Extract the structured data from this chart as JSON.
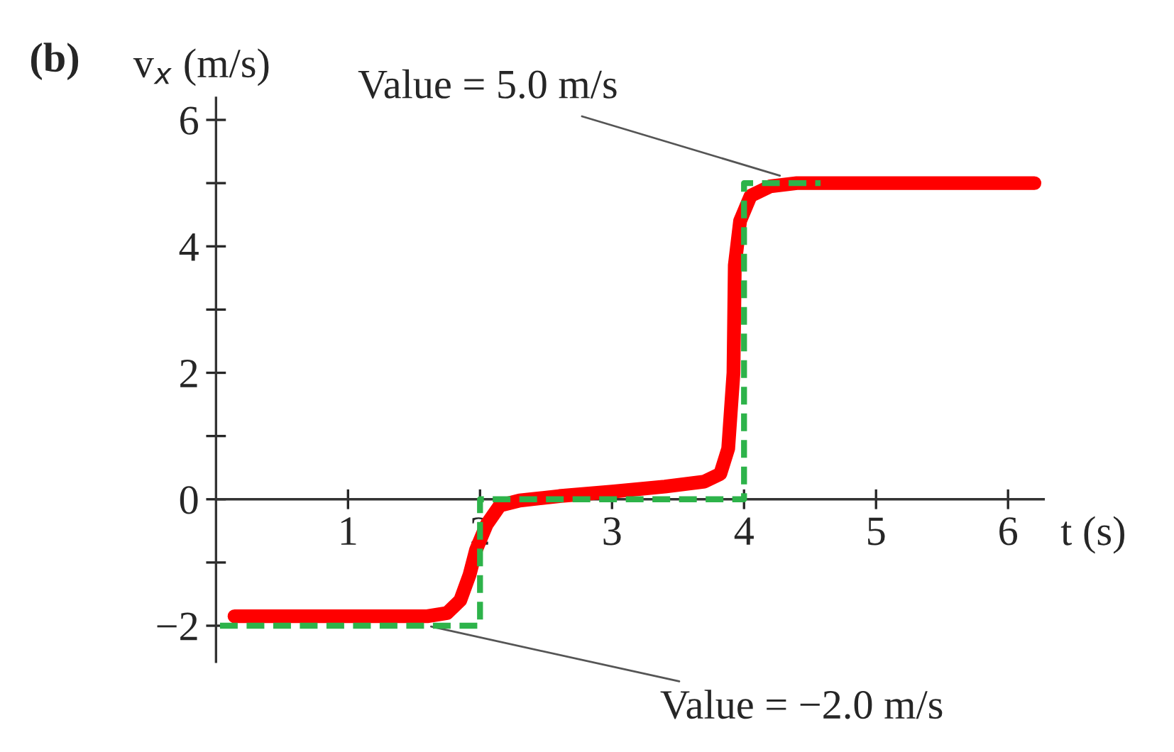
{
  "chart_data": {
    "type": "line",
    "title": "(b)",
    "ylabel": "v$_{x}$ (m/s)",
    "xlabel": "t (s)",
    "xlim": [
      0,
      6.27
    ],
    "ylim": [
      -2.57,
      6.35
    ],
    "xticks": [
      1,
      2,
      3,
      4,
      5,
      6
    ],
    "yticks": [
      -2,
      {
        "value": -1,
        "label": null
      },
      0,
      {
        "value": 1,
        "label": null
      },
      2,
      {
        "value": 3,
        "label": null
      },
      4,
      {
        "value": 5,
        "label": null
      },
      6
    ],
    "grid": false,
    "legend": false,
    "marker": "none",
    "series": [
      {
        "color": "#2db34a",
        "line_style": "dashed",
        "x": [
          0.03,
          2,
          2,
          4,
          4,
          4.58
        ],
        "values": [
          -2,
          -2,
          0,
          0,
          5,
          5
        ]
      },
      {
        "color": "#ff0000",
        "line_style": "solid",
        "x": [
          0.14,
          1.6,
          1.75,
          1.85,
          1.92,
          1.97,
          2.05,
          2.15,
          2.3,
          2.6,
          3.0,
          3.4,
          3.7,
          3.82,
          3.88,
          3.92,
          3.93,
          3.97,
          4.05,
          4.2,
          4.4,
          6.2
        ],
        "values": [
          -1.85,
          -1.85,
          -1.8,
          -1.6,
          -1.2,
          -0.8,
          -0.4,
          -0.1,
          -0.02,
          0.05,
          0.12,
          0.2,
          0.28,
          0.4,
          0.8,
          2,
          3.7,
          4.4,
          4.8,
          4.95,
          5,
          5
        ]
      }
    ],
    "annotations": [
      {
        "text": "Value = 5.0 m/s",
        "x": 4.3,
        "y": 5.1
      },
      {
        "text": "Value = −2.0 m/s",
        "x": 1.6,
        "y": -2
      }
    ]
  }
}
